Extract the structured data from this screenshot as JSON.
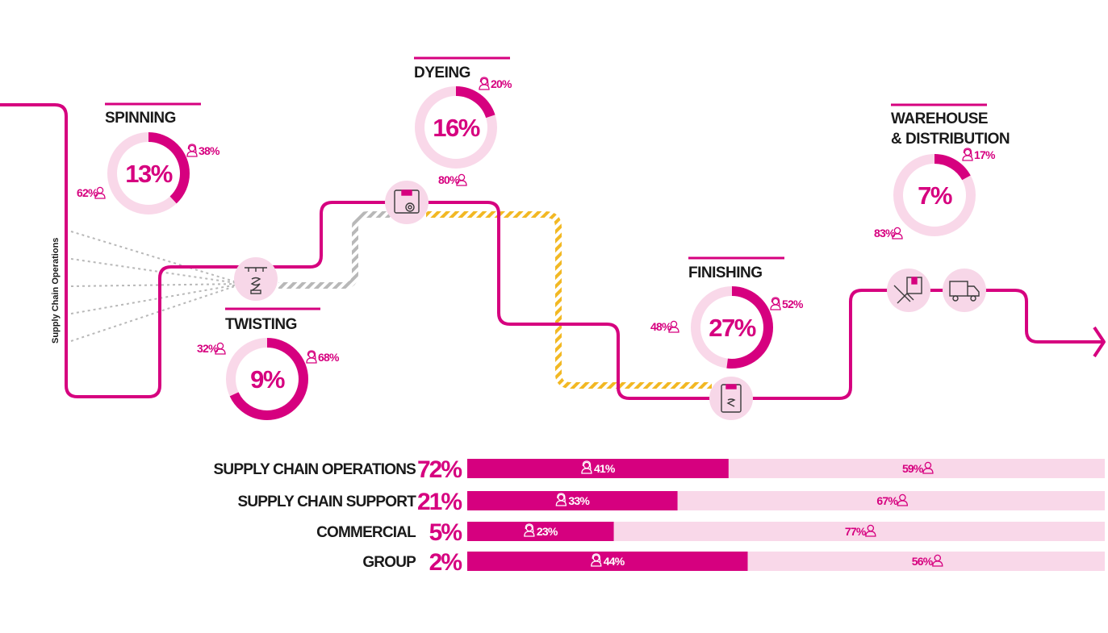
{
  "colors": {
    "accent": "#d6007f",
    "accent_light": "#f9d8e9",
    "icon_bg": "#f7d7e8",
    "dashed_grey": "#b8b8b8",
    "dashed_yellow": "#f2b823",
    "text": "#1a1a1a"
  },
  "side_label": "Supply Chain Operations",
  "stages": [
    {
      "id": "spinning",
      "title": [
        "SPINNING"
      ],
      "total": "13%",
      "total_value": 13,
      "female": "38%",
      "female_value": 38,
      "male": "62%",
      "male_value": 62
    },
    {
      "id": "twisting",
      "title": [
        "TWISTING"
      ],
      "total": "9%",
      "total_value": 9,
      "female": "68%",
      "female_value": 68,
      "male": "32%",
      "male_value": 32
    },
    {
      "id": "dyeing",
      "title": [
        "DYEING"
      ],
      "total": "16%",
      "total_value": 16,
      "female": "20%",
      "female_value": 20,
      "male": "80%",
      "male_value": 80
    },
    {
      "id": "finishing",
      "title": [
        "FINISHING"
      ],
      "total": "27%",
      "total_value": 27,
      "female": "52%",
      "female_value": 52,
      "male": "48%",
      "male_value": 48
    },
    {
      "id": "warehouse",
      "title": [
        "WAREHOUSE",
        "& DISTRIBUTION"
      ],
      "total": "7%",
      "total_value": 7,
      "female": "17%",
      "female_value": 17,
      "male": "83%",
      "male_value": 83
    }
  ],
  "process_icons": [
    {
      "name": "twisting-machine-icon"
    },
    {
      "name": "dyeing-machine-icon"
    },
    {
      "name": "finishing-machine-icon"
    },
    {
      "name": "handshake-box-icon"
    },
    {
      "name": "delivery-truck-icon"
    }
  ],
  "bars": [
    {
      "label": "SUPPLY CHAIN OPERATIONS",
      "total": "72%",
      "female": "41%",
      "female_value": 41,
      "male": "59%",
      "male_value": 59
    },
    {
      "label": "SUPPLY CHAIN SUPPORT",
      "total": "21%",
      "female": "33%",
      "female_value": 33,
      "male": "67%",
      "male_value": 67
    },
    {
      "label": "COMMERCIAL",
      "total": "5%",
      "female": "23%",
      "female_value": 23,
      "male": "77%",
      "male_value": 77
    },
    {
      "label": "GROUP",
      "total": "2%",
      "female": "44%",
      "female_value": 44,
      "male": "56%",
      "male_value": 56
    }
  ]
}
